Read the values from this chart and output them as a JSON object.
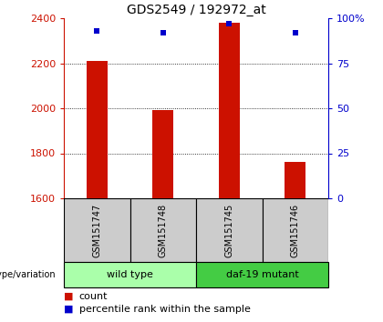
{
  "title": "GDS2549 / 192972_at",
  "samples": [
    "GSM151747",
    "GSM151748",
    "GSM151745",
    "GSM151746"
  ],
  "counts": [
    2210,
    1990,
    2380,
    1760
  ],
  "percentiles": [
    93,
    92,
    97,
    92
  ],
  "ylim_left": [
    1600,
    2400
  ],
  "ylim_right": [
    0,
    100
  ],
  "yticks_left": [
    1600,
    1800,
    2000,
    2200,
    2400
  ],
  "yticks_right": [
    0,
    25,
    50,
    75,
    100
  ],
  "ytick_right_labels": [
    "0",
    "25",
    "50",
    "75",
    "100%"
  ],
  "bar_color": "#cc1100",
  "dot_color": "#0000cc",
  "group_labels": [
    "wild type",
    "daf-19 mutant"
  ],
  "group_color_light": "#aaffaa",
  "group_color_dark": "#44cc44",
  "tick_bg_color": "#cccccc",
  "legend_count_color": "#cc1100",
  "legend_pct_color": "#0000cc",
  "background_color": "#ffffff",
  "genotype_label": "genotype/variation",
  "legend_count_text": "count",
  "legend_pct_text": "percentile rank within the sample",
  "gridline_yticks": [
    1800,
    2000,
    2200
  ]
}
